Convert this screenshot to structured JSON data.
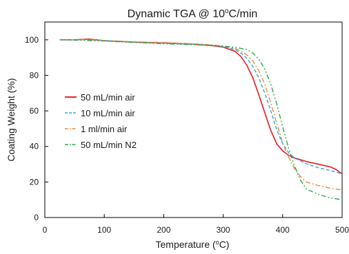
{
  "chart_data": {
    "type": "line",
    "title_main": "Dynamic TGA @ 10",
    "title_sup": "o",
    "title_unit": "C/min",
    "xlabel_main": "Temperature (",
    "xlabel_sup": "o",
    "xlabel_unit": "C)",
    "ylabel": "Coating Weight (%)",
    "xlim": [
      0,
      500
    ],
    "ylim": [
      0,
      110
    ],
    "xticks": [
      0,
      100,
      200,
      300,
      400,
      500
    ],
    "yticks": [
      0,
      20,
      40,
      60,
      80,
      100
    ],
    "grid": false,
    "legend_position": "center-left",
    "series": [
      {
        "name": "50 mL/min air",
        "color": "#e8262a",
        "dash": "solid",
        "x": [
          25,
          50,
          75,
          100,
          150,
          200,
          250,
          280,
          300,
          320,
          330,
          340,
          350,
          360,
          370,
          380,
          390,
          400,
          410,
          420,
          440,
          460,
          480,
          490,
          500
        ],
        "y": [
          100,
          100,
          100.4,
          99.5,
          98.7,
          98.2,
          97.5,
          96.8,
          95.9,
          93.5,
          90.5,
          85.5,
          78.5,
          69,
          59,
          49,
          41.5,
          37.5,
          35,
          33.5,
          31.5,
          30,
          28.5,
          27,
          24.5
        ]
      },
      {
        "name": "10 mL/min air",
        "color": "#29a6d9",
        "dash": "5,3",
        "x": [
          25,
          50,
          75,
          100,
          150,
          200,
          250,
          280,
          300,
          320,
          330,
          340,
          350,
          360,
          370,
          380,
          390,
          400,
          410,
          420,
          440,
          460,
          480,
          500
        ],
        "y": [
          100,
          100,
          100,
          99.6,
          98.8,
          98.2,
          97.5,
          97,
          96.2,
          94.5,
          92.5,
          89.5,
          85,
          78.5,
          70,
          60,
          49.5,
          41.5,
          36.5,
          33.5,
          30.2,
          28,
          26.5,
          24.5
        ]
      },
      {
        "name": "1 ml/min air",
        "color": "#f0873a",
        "dash": "7,3,2,3",
        "x": [
          25,
          50,
          75,
          100,
          150,
          200,
          250,
          280,
          300,
          320,
          330,
          340,
          350,
          360,
          370,
          380,
          390,
          400,
          410,
          420,
          430,
          440,
          460,
          480,
          500
        ],
        "y": [
          100,
          100,
          100,
          99.6,
          98.9,
          98.5,
          97.8,
          97.2,
          96.5,
          95.2,
          93.5,
          91.5,
          88,
          82.5,
          75,
          64.5,
          53,
          42,
          34,
          27.5,
          23,
          20,
          18,
          16.5,
          15.5
        ]
      },
      {
        "name": "50 mL/min N2",
        "color": "#2aa84a",
        "dash": "7,3,2,3,2,3",
        "x": [
          25,
          50,
          75,
          100,
          150,
          200,
          250,
          280,
          300,
          320,
          340,
          350,
          360,
          370,
          380,
          390,
          400,
          410,
          420,
          430,
          440,
          460,
          480,
          500
        ],
        "y": [
          100,
          99.8,
          99.6,
          99.3,
          98.5,
          97.8,
          97.2,
          96.8,
          96.4,
          95.8,
          94.5,
          92.5,
          89,
          83.5,
          75,
          64,
          51,
          39,
          29,
          21,
          16,
          13,
          11,
          10
        ]
      }
    ]
  }
}
